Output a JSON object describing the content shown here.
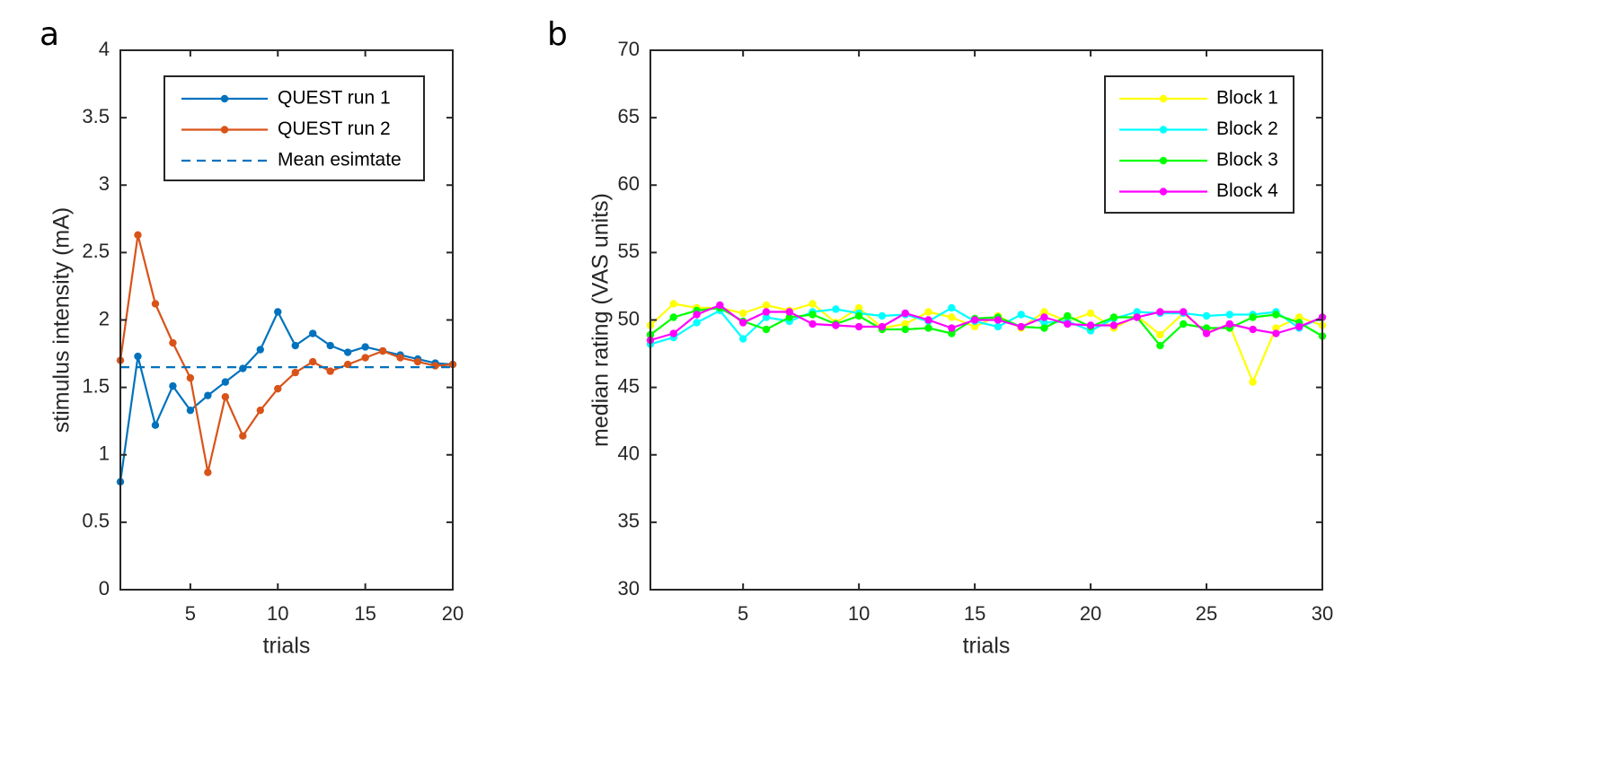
{
  "chart_data": [
    {
      "panel_label": "a",
      "type": "line",
      "xlabel": "trials",
      "ylabel": "stimulus intensity (mA)",
      "xlim": [
        1,
        20
      ],
      "ylim": [
        0,
        4
      ],
      "xticks": [
        5,
        10,
        15,
        20
      ],
      "yticks": [
        0,
        0.5,
        1,
        1.5,
        2,
        2.5,
        3,
        3.5,
        4
      ],
      "x": [
        1,
        2,
        3,
        4,
        5,
        6,
        7,
        8,
        9,
        10,
        11,
        12,
        13,
        14,
        15,
        16,
        17,
        18,
        19,
        20
      ],
      "series": [
        {
          "name": "QUEST run 1",
          "color": "#0072BD",
          "style": "solid-marker",
          "values": [
            0.8,
            1.73,
            1.22,
            1.51,
            1.33,
            1.44,
            1.54,
            1.64,
            1.78,
            2.06,
            1.81,
            1.9,
            1.81,
            1.76,
            1.8,
            1.77,
            1.74,
            1.71,
            1.68,
            1.67
          ]
        },
        {
          "name": "QUEST run 2",
          "color": "#D95319",
          "style": "solid-marker",
          "values": [
            1.7,
            2.63,
            2.12,
            1.83,
            1.57,
            0.87,
            1.43,
            1.14,
            1.33,
            1.49,
            1.61,
            1.69,
            1.62,
            1.67,
            1.72,
            1.77,
            1.72,
            1.69,
            1.66,
            1.67
          ]
        },
        {
          "name": "Mean esimtate",
          "color": "#0072BD",
          "style": "dashed",
          "values": [
            1.65,
            1.65,
            1.65,
            1.65,
            1.65,
            1.65,
            1.65,
            1.65,
            1.65,
            1.65,
            1.65,
            1.65,
            1.65,
            1.65,
            1.65,
            1.65,
            1.65,
            1.65,
            1.65,
            1.65
          ]
        }
      ],
      "legend_position": "top-right"
    },
    {
      "panel_label": "b",
      "type": "line",
      "xlabel": "trials",
      "ylabel": "median rating (VAS units)",
      "xlim": [
        1,
        30
      ],
      "ylim": [
        30,
        70
      ],
      "xticks": [
        5,
        10,
        15,
        20,
        25,
        30
      ],
      "yticks": [
        30,
        35,
        40,
        45,
        50,
        55,
        60,
        65,
        70
      ],
      "x": [
        1,
        2,
        3,
        4,
        5,
        6,
        7,
        8,
        9,
        10,
        11,
        12,
        13,
        14,
        15,
        16,
        17,
        18,
        19,
        20,
        21,
        22,
        23,
        24,
        25,
        26,
        27,
        28,
        29,
        30
      ],
      "series": [
        {
          "name": "Block 1",
          "color": "#FFFF00",
          "style": "solid-marker",
          "values": [
            49.6,
            51.2,
            50.9,
            50.9,
            50.5,
            51.1,
            50.7,
            51.2,
            49.8,
            50.9,
            49.4,
            49.7,
            50.6,
            50.2,
            49.5,
            50.3,
            49.4,
            50.6,
            49.9,
            50.5,
            49.4,
            50.3,
            48.9,
            50.5,
            49.1,
            49.6,
            45.4,
            49.4,
            50.2,
            49.6
          ]
        },
        {
          "name": "Block 2",
          "color": "#00FFFF",
          "style": "solid-marker",
          "values": [
            48.2,
            48.7,
            49.8,
            50.7,
            48.6,
            50.2,
            49.9,
            50.6,
            50.8,
            50.5,
            50.3,
            50.4,
            49.9,
            50.9,
            49.9,
            49.5,
            50.4,
            49.8,
            49.9,
            49.2,
            50.1,
            50.6,
            50.5,
            50.5,
            50.3,
            50.4,
            50.4,
            50.6,
            49.4,
            50.2
          ]
        },
        {
          "name": "Block 3",
          "color": "#00FF00",
          "style": "solid-marker",
          "values": [
            48.9,
            50.2,
            50.7,
            50.9,
            49.9,
            49.3,
            50.2,
            50.4,
            49.7,
            50.3,
            49.3,
            49.3,
            49.4,
            49.0,
            50.1,
            50.2,
            49.5,
            49.4,
            50.3,
            49.5,
            50.2,
            50.2,
            48.1,
            49.7,
            49.4,
            49.4,
            50.2,
            50.4,
            49.8,
            48.8
          ]
        },
        {
          "name": "Block 4",
          "color": "#FF00FF",
          "style": "solid-marker",
          "values": [
            48.5,
            49.0,
            50.4,
            51.1,
            49.8,
            50.6,
            50.6,
            49.7,
            49.6,
            49.5,
            49.5,
            50.5,
            50.0,
            49.4,
            50.0,
            50.0,
            49.5,
            50.2,
            49.7,
            49.6,
            49.6,
            50.2,
            50.6,
            50.6,
            49.0,
            49.7,
            49.3,
            49.0,
            49.5,
            50.2
          ]
        }
      ],
      "legend_position": "top-right"
    }
  ]
}
